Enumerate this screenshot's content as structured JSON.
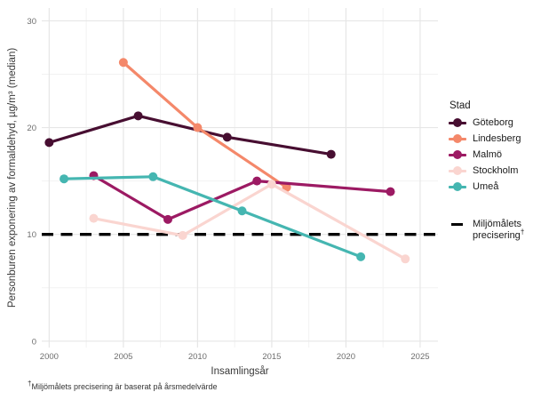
{
  "chart_data": {
    "type": "line",
    "title": "",
    "xlabel": "Insamlingsår",
    "ylabel": "Personburen exponering av formaldehyd, µg/m³ (median)",
    "x_ticks": [
      2000,
      2005,
      2010,
      2015,
      2020,
      2025
    ],
    "y_ticks": [
      0,
      10,
      20,
      30
    ],
    "xlim": [
      1999.5,
      2026.2
    ],
    "ylim": [
      -0.6,
      31.2
    ],
    "grid": "major+minor",
    "legend": {
      "title": "Stad",
      "position": "right"
    },
    "series": [
      {
        "name": "Göteborg",
        "color": "#470E31",
        "points": [
          [
            2000,
            18.6
          ],
          [
            2006,
            21.1
          ],
          [
            2012,
            19.1
          ],
          [
            2019,
            17.5
          ]
        ]
      },
      {
        "name": "Lindesberg",
        "color": "#F4886A",
        "points": [
          [
            2005,
            26.1
          ],
          [
            2010,
            20.0
          ],
          [
            2016,
            14.4
          ]
        ]
      },
      {
        "name": "Malmö",
        "color": "#9C1A63",
        "points": [
          [
            2003,
            15.5
          ],
          [
            2008,
            11.4
          ],
          [
            2014,
            15.0
          ],
          [
            2023,
            14.0
          ]
        ]
      },
      {
        "name": "Stockholm",
        "color": "#FAD5D0",
        "points": [
          [
            2003,
            11.5
          ],
          [
            2009,
            9.9
          ],
          [
            2015,
            14.7
          ],
          [
            2024,
            7.7
          ]
        ]
      },
      {
        "name": "Umeå",
        "color": "#45B6B1",
        "points": [
          [
            2001,
            15.2
          ],
          [
            2007,
            15.4
          ],
          [
            2013,
            12.2
          ],
          [
            2021,
            7.9
          ]
        ]
      }
    ],
    "reference_line": {
      "value": 10,
      "style": "dashed",
      "color": "#000000",
      "label": {
        "text": "Miljömålets precisering",
        "dagger": "†"
      }
    },
    "style": {
      "grid_major_color": "#E6E6E6",
      "grid_minor_color": "#F2F2F2",
      "tick_label_color": "#6E6E6E",
      "line_width": 3.2,
      "point_radius": 5
    }
  },
  "footnote": {
    "dagger": "†",
    "text": "Miljömålets precisering är baserat på årsmedelvärde"
  }
}
